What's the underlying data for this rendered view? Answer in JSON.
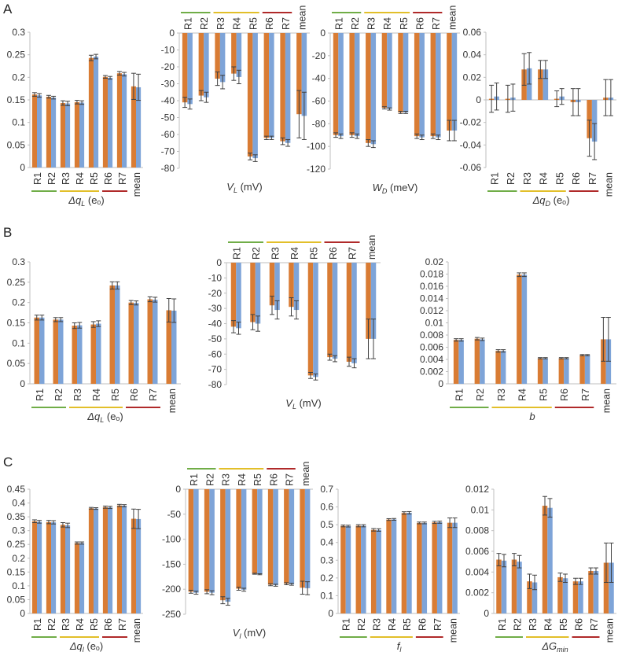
{
  "panels": [
    {
      "label": "A"
    },
    {
      "label": "B"
    },
    {
      "label": "C"
    }
  ],
  "colors": {
    "orange": "#d97c34",
    "blue": "#7ea4d8",
    "axis": "#bfbfbf",
    "text": "#333333",
    "error": "#404040",
    "group_green": "#70ad47",
    "group_yellow": "#e2bf2a",
    "group_red": "#b02a2a"
  },
  "chart_data": [
    {
      "id": "A1",
      "type": "bar",
      "categories": [
        "R1",
        "R2",
        "R3",
        "R4",
        "R5",
        "R6",
        "R7",
        "mean"
      ],
      "xlabel": "Δq_L (e_o)",
      "xlabel_main": "Δq",
      "xlabel_sub": "L",
      "xlabel_rest": " (eₒ)",
      "ylim": [
        0,
        0.3
      ],
      "yticks": [
        0,
        0.05,
        0.1,
        0.15,
        0.2,
        0.25,
        0.3
      ],
      "ytick_labels": [
        "0",
        "0.05",
        "0.1",
        "0.15",
        "0.2",
        "0.25",
        "0.3"
      ],
      "category_position": "bottom",
      "groups_position": "bottom",
      "series": [
        {
          "values": [
            0.162,
            0.157,
            0.143,
            0.145,
            0.243,
            0.201,
            0.209,
            0.18
          ],
          "errors": [
            0.004,
            0.003,
            0.005,
            0.004,
            0.006,
            0.003,
            0.004,
            0.029
          ]
        },
        {
          "values": [
            0.16,
            0.155,
            0.142,
            0.144,
            0.246,
            0.199,
            0.207,
            0.178
          ],
          "errors": [
            0.004,
            0.003,
            0.005,
            0.004,
            0.005,
            0.003,
            0.004,
            0.029
          ]
        }
      ]
    },
    {
      "id": "A2",
      "type": "bar",
      "categories": [
        "R1",
        "R2",
        "R3",
        "R4",
        "R5",
        "R6",
        "R7",
        "mean"
      ],
      "xlabel": "V_L (mV)",
      "xlabel_main": "V",
      "xlabel_sub": "L",
      "xlabel_rest": " (mV)",
      "ylim": [
        -80,
        0
      ],
      "yticks": [
        -80,
        -70,
        -60,
        -50,
        -40,
        -30,
        -20,
        -10,
        0
      ],
      "ytick_labels": [
        "-80",
        "-70",
        "-60",
        "-50",
        "-40",
        "-30",
        "-20",
        "-10",
        "0"
      ],
      "category_position": "top",
      "groups_position": "top",
      "series": [
        {
          "values": [
            -41,
            -37,
            -27,
            -24,
            -73,
            -62,
            -64,
            -48
          ],
          "errors": [
            3,
            3,
            4,
            4,
            2,
            1,
            2,
            14
          ]
        },
        {
          "values": [
            -42,
            -38,
            -29,
            -26,
            -74,
            -62,
            -65,
            -49
          ],
          "errors": [
            3,
            3,
            4,
            4,
            2,
            1,
            2,
            14
          ]
        }
      ]
    },
    {
      "id": "A3",
      "type": "bar",
      "categories": [
        "R1",
        "R2",
        "R3",
        "R4",
        "R5",
        "R6",
        "R7",
        "mean"
      ],
      "xlabel": "W_D (meV)",
      "xlabel_main": "W",
      "xlabel_sub": "D",
      "xlabel_rest": " (meV)",
      "ylim": [
        -120,
        0
      ],
      "yticks": [
        -120,
        -100,
        -80,
        -60,
        -40,
        -20,
        0
      ],
      "ytick_labels": [
        "-120",
        "-100",
        "-80",
        "-60",
        "-40",
        "-20",
        "0"
      ],
      "category_position": "top",
      "groups_position": "top",
      "series": [
        {
          "values": [
            -90,
            -90,
            -97,
            -66,
            -70,
            -91,
            -91,
            -86
          ],
          "errors": [
            2,
            2,
            3,
            1,
            1,
            2,
            2,
            9
          ]
        },
        {
          "values": [
            -91,
            -91,
            -98,
            -67,
            -70,
            -92,
            -92,
            -86
          ],
          "errors": [
            2,
            2,
            3,
            1,
            1,
            2,
            2,
            9
          ]
        }
      ]
    },
    {
      "id": "A4",
      "type": "bar",
      "categories": [
        "R1",
        "R2",
        "R3",
        "R4",
        "R5",
        "R6",
        "R7",
        "mean"
      ],
      "xlabel": "Δq_D (e_o)",
      "xlabel_main": "Δq",
      "xlabel_sub": "D",
      "xlabel_rest": " (eₒ)",
      "ylim": [
        -0.06,
        0.06
      ],
      "yticks": [
        -0.06,
        -0.04,
        -0.02,
        0,
        0.02,
        0.04,
        0.06
      ],
      "ytick_labels": [
        "-0.06",
        "-0.04",
        "-0.02",
        "0",
        "0.02",
        "0.04",
        "0.06"
      ],
      "category_position": "bottom",
      "groups_position": "bottom",
      "series": [
        {
          "values": [
            0.001,
            0.001,
            0.027,
            0.027,
            0.001,
            -0.002,
            -0.034,
            0.002
          ],
          "errors": [
            0.012,
            0.012,
            0.014,
            0.008,
            0.007,
            0.012,
            0.016,
            0.016
          ]
        },
        {
          "values": [
            0.003,
            0.002,
            0.028,
            0.027,
            0.003,
            -0.002,
            -0.037,
            0.002
          ],
          "errors": [
            0.012,
            0.012,
            0.014,
            0.008,
            0.007,
            0.012,
            0.016,
            0.016
          ]
        }
      ]
    },
    {
      "id": "B1",
      "type": "bar",
      "categories": [
        "R1",
        "R2",
        "R3",
        "R4",
        "R5",
        "R6",
        "R7",
        "mean"
      ],
      "xlabel": "Δq_L (e_o)",
      "xlabel_main": "Δq",
      "xlabel_sub": "L",
      "xlabel_rest": " (eₒ)",
      "ylim": [
        0,
        0.3
      ],
      "yticks": [
        0,
        0.05,
        0.1,
        0.15,
        0.2,
        0.25,
        0.3
      ],
      "ytick_labels": [
        "0",
        "0.05",
        "0.1",
        "0.15",
        "0.2",
        "0.25",
        "0.3"
      ],
      "category_position": "bottom",
      "groups_position": "bottom",
      "series": [
        {
          "values": [
            0.163,
            0.158,
            0.143,
            0.146,
            0.242,
            0.2,
            0.208,
            0.181
          ],
          "errors": [
            0.006,
            0.005,
            0.007,
            0.007,
            0.009,
            0.005,
            0.006,
            0.029
          ]
        },
        {
          "values": [
            0.163,
            0.158,
            0.144,
            0.148,
            0.242,
            0.199,
            0.207,
            0.18
          ],
          "errors": [
            0.006,
            0.005,
            0.007,
            0.007,
            0.009,
            0.005,
            0.006,
            0.029
          ]
        }
      ]
    },
    {
      "id": "B2",
      "type": "bar",
      "categories": [
        "R1",
        "R2",
        "R3",
        "R4",
        "R5",
        "R6",
        "R7",
        "mean"
      ],
      "xlabel": "V_L (mV)",
      "xlabel_main": "V",
      "xlabel_sub": "L",
      "xlabel_rest": " (mV)",
      "ylim": [
        -80,
        0
      ],
      "yticks": [
        -80,
        -70,
        -60,
        -50,
        -40,
        -30,
        -20,
        -10,
        0
      ],
      "ytick_labels": [
        "-80",
        "-70",
        "-60",
        "-50",
        "-40",
        "-30",
        "-20",
        "-10",
        "0"
      ],
      "category_position": "top",
      "groups_position": "top",
      "series": [
        {
          "values": [
            -42,
            -39,
            -28,
            -29,
            -74,
            -62,
            -65,
            -50
          ],
          "errors": [
            4,
            5,
            6,
            6,
            2,
            2,
            3,
            13
          ]
        },
        {
          "values": [
            -43,
            -40,
            -31,
            -31,
            -75,
            -63,
            -66,
            -50
          ],
          "errors": [
            4,
            5,
            6,
            6,
            2,
            2,
            3,
            13
          ]
        }
      ]
    },
    {
      "id": "B3",
      "type": "bar",
      "categories": [
        "R1",
        "R2",
        "R3",
        "R4",
        "R5",
        "R6",
        "R7",
        "mean"
      ],
      "xlabel": "b",
      "xlabel_main": "b",
      "xlabel_sub": "",
      "xlabel_rest": "",
      "ylim": [
        0,
        0.02
      ],
      "yticks": [
        0,
        0.002,
        0.004,
        0.006,
        0.008,
        0.01,
        0.012,
        0.014,
        0.016,
        0.018,
        0.02
      ],
      "ytick_labels": [
        "0",
        "0.002",
        "0.004",
        "0.006",
        "0.008",
        "0.01",
        "0.012",
        "0.014",
        "0.016",
        "0.018",
        "0.02"
      ],
      "category_position": "bottom",
      "groups_position": "bottom",
      "series": [
        {
          "values": [
            0.0072,
            0.0074,
            0.0054,
            0.0179,
            0.0042,
            0.0042,
            0.0047,
            0.0073
          ],
          "errors": [
            0.0002,
            0.0002,
            0.0002,
            0.0003,
            0.0001,
            0.0001,
            0.0001,
            0.0036
          ]
        },
        {
          "values": [
            0.0072,
            0.0073,
            0.0054,
            0.0179,
            0.0042,
            0.0042,
            0.0047,
            0.0073
          ],
          "errors": [
            0.0002,
            0.0002,
            0.0002,
            0.0003,
            0.0001,
            0.0001,
            0.0001,
            0.0036
          ]
        }
      ]
    },
    {
      "id": "C1",
      "type": "bar",
      "categories": [
        "R1",
        "R2",
        "R3",
        "R4",
        "R5",
        "R6",
        "R7",
        "mean"
      ],
      "xlabel": "Δq_l (e_o)",
      "xlabel_main": "Δq",
      "xlabel_sub": "l",
      "xlabel_rest": " (eₒ)",
      "ylim": [
        0,
        0.45
      ],
      "yticks": [
        0,
        0.05,
        0.1,
        0.15,
        0.2,
        0.25,
        0.3,
        0.35,
        0.4,
        0.45
      ],
      "ytick_labels": [
        "0",
        "0.05",
        "0.1",
        "0.15",
        "0.2",
        "0.25",
        "0.3",
        "0.35",
        "0.4",
        "0.45"
      ],
      "category_position": "bottom",
      "groups_position": "bottom",
      "series": [
        {
          "values": [
            0.334,
            0.331,
            0.321,
            0.255,
            0.381,
            0.385,
            0.391,
            0.343
          ],
          "errors": [
            0.005,
            0.006,
            0.008,
            0.004,
            0.003,
            0.004,
            0.004,
            0.035
          ]
        },
        {
          "values": [
            0.332,
            0.33,
            0.319,
            0.255,
            0.38,
            0.384,
            0.39,
            0.342
          ],
          "errors": [
            0.005,
            0.006,
            0.008,
            0.004,
            0.003,
            0.004,
            0.004,
            0.035
          ]
        }
      ]
    },
    {
      "id": "C2",
      "type": "bar",
      "categories": [
        "R1",
        "R2",
        "R3",
        "R4",
        "R5",
        "R6",
        "R7",
        "mean"
      ],
      "xlabel": "V_l (mV)",
      "xlabel_main": "V",
      "xlabel_sub": "l",
      "xlabel_rest": " (mV)",
      "ylim": [
        -250,
        0
      ],
      "yticks": [
        -250,
        -200,
        -150,
        -100,
        -50,
        0
      ],
      "ytick_labels": [
        "-250",
        "-200",
        "-150",
        "-100",
        "-50",
        "0"
      ],
      "category_position": "top",
      "groups_position": "top",
      "series": [
        {
          "values": [
            -205,
            -205,
            -222,
            -199,
            -169,
            -191,
            -189,
            -197
          ],
          "errors": [
            3,
            4,
            7,
            3,
            1,
            2,
            2,
            13
          ]
        },
        {
          "values": [
            -207,
            -207,
            -225,
            -201,
            -170,
            -192,
            -190,
            -198
          ],
          "errors": [
            3,
            4,
            7,
            3,
            1,
            2,
            2,
            13
          ]
        }
      ]
    },
    {
      "id": "C3",
      "type": "bar",
      "categories": [
        "R1",
        "R2",
        "R3",
        "R4",
        "R5",
        "R6",
        "R7",
        "mean"
      ],
      "xlabel": "f_l",
      "xlabel_main": "f",
      "xlabel_sub": "l",
      "xlabel_rest": "",
      "ylim": [
        0,
        0.7
      ],
      "yticks": [
        0,
        0.1,
        0.2,
        0.3,
        0.4,
        0.5,
        0.6,
        0.7
      ],
      "ytick_labels": [
        "0",
        "0.1",
        "0.2",
        "0.3",
        "0.4",
        "0.5",
        "0.6",
        "0.7"
      ],
      "category_position": "bottom",
      "groups_position": "bottom",
      "series": [
        {
          "values": [
            0.493,
            0.494,
            0.471,
            0.529,
            0.566,
            0.51,
            0.513,
            0.511
          ],
          "errors": [
            0.005,
            0.006,
            0.007,
            0.005,
            0.007,
            0.005,
            0.006,
            0.027
          ]
        },
        {
          "values": [
            0.492,
            0.494,
            0.47,
            0.53,
            0.567,
            0.51,
            0.514,
            0.511
          ],
          "errors": [
            0.005,
            0.006,
            0.007,
            0.005,
            0.007,
            0.005,
            0.006,
            0.027
          ]
        }
      ]
    },
    {
      "id": "C4",
      "type": "bar",
      "categories": [
        "R1",
        "R2",
        "R3",
        "R4",
        "R5",
        "R6",
        "R7",
        "mean"
      ],
      "xlabel": "ΔG_min",
      "xlabel_main": "ΔG",
      "xlabel_sub": "min",
      "xlabel_rest": "",
      "ylim": [
        0,
        0.012
      ],
      "yticks": [
        0,
        0.002,
        0.004,
        0.006,
        0.008,
        0.01,
        0.012
      ],
      "ytick_labels": [
        "0",
        "0.002",
        "0.004",
        "0.006",
        "0.008",
        "0.01",
        "0.012"
      ],
      "category_position": "bottom",
      "groups_position": "bottom",
      "series": [
        {
          "values": [
            0.0052,
            0.0052,
            0.0031,
            0.0104,
            0.0035,
            0.0031,
            0.0041,
            0.0049
          ],
          "errors": [
            0.0006,
            0.0006,
            0.0007,
            0.0009,
            0.0004,
            0.0003,
            0.0003,
            0.0019
          ]
        },
        {
          "values": [
            0.0051,
            0.005,
            0.003,
            0.0102,
            0.0034,
            0.0031,
            0.0041,
            0.0049
          ],
          "errors": [
            0.0006,
            0.0006,
            0.0007,
            0.0009,
            0.0004,
            0.0003,
            0.0003,
            0.0019
          ]
        }
      ]
    }
  ]
}
